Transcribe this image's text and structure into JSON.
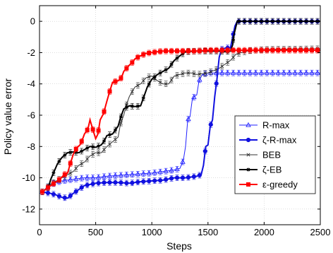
{
  "chart_data": {
    "type": "line",
    "xlabel": "Steps",
    "ylabel": "Policy value error",
    "xlim": [
      0,
      2500
    ],
    "ylim": [
      -13,
      1
    ],
    "xticks": [
      0,
      500,
      1000,
      1500,
      2000,
      2500
    ],
    "yticks": [
      0,
      -2,
      -4,
      -6,
      -8,
      -10,
      -12
    ],
    "grid": true,
    "legend_position": "right",
    "series": [
      {
        "name": "R-max",
        "color": "#2222ff",
        "marker": "triangle-open",
        "linewidth": 1,
        "points": [
          [
            25,
            -10.9
          ],
          [
            100,
            -10.4
          ],
          [
            200,
            -10.2
          ],
          [
            300,
            -10.1
          ],
          [
            400,
            -10.0
          ],
          [
            500,
            -10.0
          ],
          [
            600,
            -9.9
          ],
          [
            700,
            -9.85
          ],
          [
            800,
            -9.8
          ],
          [
            900,
            -9.75
          ],
          [
            1000,
            -9.7
          ],
          [
            1100,
            -9.6
          ],
          [
            1200,
            -9.5
          ],
          [
            1250,
            -9.4
          ],
          [
            1280,
            -8.9
          ],
          [
            1300,
            -8.0
          ],
          [
            1320,
            -6.3
          ],
          [
            1340,
            -6.1
          ],
          [
            1360,
            -5.0
          ],
          [
            1380,
            -4.8
          ],
          [
            1400,
            -4.7
          ],
          [
            1420,
            -3.8
          ],
          [
            1450,
            -3.4
          ],
          [
            1500,
            -3.3
          ],
          [
            2000,
            -3.3
          ],
          [
            2500,
            -3.3
          ]
        ]
      },
      {
        "name": "ζ-R-max",
        "color": "#1010e0",
        "marker": "circle",
        "linewidth": 2,
        "points": [
          [
            25,
            -10.9
          ],
          [
            100,
            -11.0
          ],
          [
            150,
            -11.1
          ],
          [
            200,
            -11.25
          ],
          [
            250,
            -11.3
          ],
          [
            300,
            -11.0
          ],
          [
            350,
            -10.75
          ],
          [
            400,
            -10.5
          ],
          [
            500,
            -10.35
          ],
          [
            600,
            -10.3
          ],
          [
            700,
            -10.3
          ],
          [
            800,
            -10.35
          ],
          [
            900,
            -10.25
          ],
          [
            1000,
            -10.2
          ],
          [
            1100,
            -10.15
          ],
          [
            1200,
            -10.0
          ],
          [
            1300,
            -10.0
          ],
          [
            1400,
            -9.9
          ],
          [
            1440,
            -9.8
          ],
          [
            1460,
            -9.2
          ],
          [
            1480,
            -8.0
          ],
          [
            1500,
            -7.9
          ],
          [
            1520,
            -6.7
          ],
          [
            1540,
            -6.3
          ],
          [
            1560,
            -4.8
          ],
          [
            1580,
            -3.7
          ],
          [
            1600,
            -2.3
          ],
          [
            1620,
            -1.8
          ],
          [
            1660,
            -1.7
          ],
          [
            1700,
            -1.7
          ],
          [
            1740,
            -0.3
          ],
          [
            1760,
            0.0
          ],
          [
            2000,
            0.0
          ],
          [
            2500,
            0.0
          ]
        ]
      },
      {
        "name": "BEB",
        "color": "#333333",
        "marker": "x",
        "linewidth": 1,
        "points": [
          [
            25,
            -10.9
          ],
          [
            100,
            -10.4
          ],
          [
            200,
            -10.0
          ],
          [
            300,
            -9.6
          ],
          [
            350,
            -9.2
          ],
          [
            400,
            -9.0
          ],
          [
            450,
            -8.6
          ],
          [
            500,
            -8.4
          ],
          [
            550,
            -8.4
          ],
          [
            600,
            -8.0
          ],
          [
            650,
            -7.7
          ],
          [
            700,
            -7.4
          ],
          [
            720,
            -6.6
          ],
          [
            750,
            -6.0
          ],
          [
            780,
            -5.2
          ],
          [
            800,
            -4.8
          ],
          [
            850,
            -4.2
          ],
          [
            900,
            -4.0
          ],
          [
            950,
            -3.6
          ],
          [
            1000,
            -3.5
          ],
          [
            1050,
            -3.8
          ],
          [
            1100,
            -4.0
          ],
          [
            1150,
            -4.0
          ],
          [
            1200,
            -3.5
          ],
          [
            1250,
            -3.4
          ],
          [
            1300,
            -3.3
          ],
          [
            1350,
            -3.3
          ],
          [
            1400,
            -3.4
          ],
          [
            1500,
            -3.3
          ],
          [
            1600,
            -3.0
          ],
          [
            1700,
            -2.5
          ],
          [
            1750,
            -2.1
          ],
          [
            1800,
            -2.0
          ],
          [
            1850,
            -1.9
          ],
          [
            2000,
            -1.8
          ],
          [
            2500,
            -1.75
          ]
        ]
      },
      {
        "name": "ζ-EB",
        "color": "#000000",
        "marker": "star",
        "linewidth": 2,
        "points": [
          [
            25,
            -10.9
          ],
          [
            80,
            -10.6
          ],
          [
            100,
            -10.1
          ],
          [
            130,
            -9.6
          ],
          [
            160,
            -9.1
          ],
          [
            200,
            -8.7
          ],
          [
            250,
            -8.4
          ],
          [
            300,
            -8.35
          ],
          [
            350,
            -8.4
          ],
          [
            400,
            -8.2
          ],
          [
            450,
            -8.0
          ],
          [
            500,
            -8.05
          ],
          [
            550,
            -7.9
          ],
          [
            580,
            -7.6
          ],
          [
            600,
            -7.3
          ],
          [
            650,
            -7.2
          ],
          [
            700,
            -6.7
          ],
          [
            720,
            -6.2
          ],
          [
            750,
            -5.6
          ],
          [
            800,
            -5.4
          ],
          [
            850,
            -5.45
          ],
          [
            900,
            -5.4
          ],
          [
            930,
            -4.8
          ],
          [
            960,
            -4.2
          ],
          [
            1000,
            -3.7
          ],
          [
            1050,
            -3.4
          ],
          [
            1100,
            -3.2
          ],
          [
            1150,
            -3.0
          ],
          [
            1200,
            -2.5
          ],
          [
            1250,
            -2.2
          ],
          [
            1300,
            -1.95
          ],
          [
            1400,
            -1.9
          ],
          [
            1500,
            -1.9
          ],
          [
            1600,
            -1.9
          ],
          [
            1650,
            -1.95
          ],
          [
            1700,
            -1.9
          ],
          [
            1720,
            -1.5
          ],
          [
            1730,
            -0.9
          ],
          [
            1750,
            -0.3
          ],
          [
            1760,
            0.0
          ],
          [
            2000,
            0.0
          ],
          [
            2500,
            0.0
          ]
        ]
      },
      {
        "name": "ε-greedy",
        "color": "#ff0000",
        "marker": "square",
        "linewidth": 2,
        "points": [
          [
            25,
            -10.9
          ],
          [
            80,
            -10.6
          ],
          [
            120,
            -10.4
          ],
          [
            180,
            -10.1
          ],
          [
            220,
            -9.8
          ],
          [
            250,
            -9.7
          ],
          [
            270,
            -9.2
          ],
          [
            300,
            -8.5
          ],
          [
            330,
            -8.1
          ],
          [
            360,
            -7.9
          ],
          [
            380,
            -7.6
          ],
          [
            400,
            -7.2
          ],
          [
            430,
            -6.9
          ],
          [
            450,
            -6.3
          ],
          [
            470,
            -6.8
          ],
          [
            500,
            -7.5
          ],
          [
            520,
            -7.2
          ],
          [
            540,
            -6.3
          ],
          [
            570,
            -5.9
          ],
          [
            600,
            -5.1
          ],
          [
            620,
            -4.6
          ],
          [
            650,
            -3.9
          ],
          [
            700,
            -3.8
          ],
          [
            730,
            -3.6
          ],
          [
            750,
            -3.2
          ],
          [
            800,
            -2.8
          ],
          [
            830,
            -2.6
          ],
          [
            850,
            -2.4
          ],
          [
            900,
            -2.2
          ],
          [
            950,
            -2.05
          ],
          [
            1000,
            -2.0
          ],
          [
            1050,
            -1.95
          ],
          [
            1100,
            -1.9
          ],
          [
            1200,
            -1.9
          ],
          [
            1300,
            -1.9
          ],
          [
            1400,
            -1.9
          ],
          [
            1500,
            -1.85
          ],
          [
            2000,
            -1.85
          ],
          [
            2500,
            -1.85
          ]
        ]
      }
    ]
  }
}
